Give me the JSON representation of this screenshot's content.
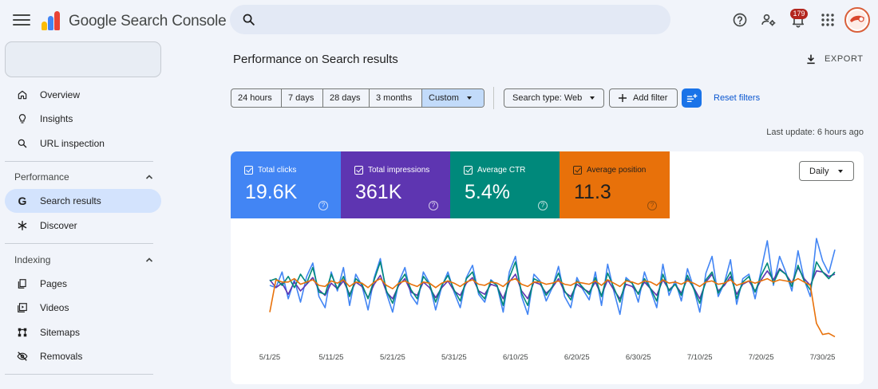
{
  "header": {
    "brand": "Google Search Console",
    "search_placeholder": "",
    "notification_count": "179",
    "icons": [
      "menu-icon",
      "search-icon",
      "help-icon",
      "manage-users-icon",
      "notifications-icon",
      "apps-grid-icon"
    ],
    "logo_colors": [
      "#fbbc04",
      "#4285f4",
      "#ea4335"
    ]
  },
  "sidebar": {
    "property_value": "",
    "items": [
      {
        "label": "Overview",
        "icon": "home-icon"
      },
      {
        "label": "Insights",
        "icon": "lightbulb-icon"
      },
      {
        "label": "URL inspection",
        "icon": "search-icon"
      }
    ],
    "performance": {
      "heading": "Performance",
      "items": [
        {
          "label": "Search results",
          "icon": "google-g-icon",
          "active": true
        },
        {
          "label": "Discover",
          "icon": "asterisk-icon"
        }
      ]
    },
    "indexing": {
      "heading": "Indexing",
      "items": [
        {
          "label": "Pages",
          "icon": "pages-icon"
        },
        {
          "label": "Videos",
          "icon": "video-icon"
        },
        {
          "label": "Sitemaps",
          "icon": "sitemap-icon"
        },
        {
          "label": "Removals",
          "icon": "eye-off-icon"
        }
      ]
    }
  },
  "main": {
    "title": "Performance on Search results",
    "export_label": "EXPORT",
    "date_ranges": [
      "24 hours",
      "7 days",
      "28 days",
      "3 months",
      "Custom"
    ],
    "selected_range": "Custom",
    "search_type_label": "Search type: Web",
    "add_filter_label": "Add filter",
    "reset_filters_label": "Reset filters",
    "last_update": "Last update: 6 hours ago",
    "interval_label": "Daily"
  },
  "metrics": [
    {
      "label": "Total clicks",
      "value": "19.6K",
      "color": "#4285f4"
    },
    {
      "label": "Total impressions",
      "value": "361K",
      "color": "#5e35b1"
    },
    {
      "label": "Average CTR",
      "value": "5.4%",
      "color": "#00897b"
    },
    {
      "label": "Average position",
      "value": "11.3",
      "color": "#e8710a"
    }
  ],
  "chart_data": {
    "type": "line",
    "x": [
      "5/1/25",
      "5/2/25",
      "5/3/25",
      "5/4/25",
      "5/5/25",
      "5/6/25",
      "5/7/25",
      "5/8/25",
      "5/9/25",
      "5/10/25",
      "5/11/25",
      "5/12/25",
      "5/13/25",
      "5/14/25",
      "5/15/25",
      "5/16/25",
      "5/17/25",
      "5/18/25",
      "5/19/25",
      "5/20/25",
      "5/21/25",
      "5/22/25",
      "5/23/25",
      "5/24/25",
      "5/25/25",
      "5/26/25",
      "5/27/25",
      "5/28/25",
      "5/29/25",
      "5/30/25",
      "5/31/25",
      "6/1/25",
      "6/2/25",
      "6/3/25",
      "6/4/25",
      "6/5/25",
      "6/6/25",
      "6/7/25",
      "6/8/25",
      "6/9/25",
      "6/10/25",
      "6/11/25",
      "6/12/25",
      "6/13/25",
      "6/14/25",
      "6/15/25",
      "6/16/25",
      "6/17/25",
      "6/18/25",
      "6/19/25",
      "6/20/25",
      "6/21/25",
      "6/22/25",
      "6/23/25",
      "6/24/25",
      "6/25/25",
      "6/26/25",
      "6/27/25",
      "6/28/25",
      "6/29/25",
      "6/30/25",
      "7/1/25",
      "7/2/25",
      "7/3/25",
      "7/4/25",
      "7/5/25",
      "7/6/25",
      "7/7/25",
      "7/8/25",
      "7/9/25",
      "7/10/25",
      "7/11/25",
      "7/12/25",
      "7/13/25",
      "7/14/25",
      "7/15/25",
      "7/16/25",
      "7/17/25",
      "7/18/25",
      "7/19/25",
      "7/20/25",
      "7/21/25",
      "7/22/25",
      "7/23/25",
      "7/24/25",
      "7/25/25",
      "7/26/25",
      "7/27/25",
      "7/28/25",
      "7/29/25",
      "7/30/25",
      "7/31/25",
      "8/1/25"
    ],
    "x_tick_labels": [
      "5/1/25",
      "5/11/25",
      "5/21/25",
      "5/31/25",
      "6/10/25",
      "6/20/25",
      "6/30/25",
      "7/10/25",
      "7/20/25",
      "7/30/25"
    ],
    "ylim": [
      0,
      1
    ],
    "grid": false,
    "legend": "none",
    "series": [
      {
        "color": "#4285f4",
        "values": [
          0.5,
          0.48,
          0.62,
          0.38,
          0.55,
          0.35,
          0.58,
          0.7,
          0.4,
          0.3,
          0.62,
          0.45,
          0.66,
          0.32,
          0.6,
          0.5,
          0.28,
          0.57,
          0.74,
          0.43,
          0.26,
          0.53,
          0.66,
          0.41,
          0.33,
          0.62,
          0.52,
          0.28,
          0.49,
          0.62,
          0.44,
          0.3,
          0.57,
          0.68,
          0.42,
          0.35,
          0.55,
          0.5,
          0.26,
          0.62,
          0.76,
          0.4,
          0.24,
          0.6,
          0.54,
          0.36,
          0.48,
          0.67,
          0.4,
          0.3,
          0.57,
          0.46,
          0.37,
          0.62,
          0.32,
          0.69,
          0.45,
          0.24,
          0.57,
          0.52,
          0.35,
          0.62,
          0.46,
          0.3,
          0.69,
          0.41,
          0.54,
          0.36,
          0.65,
          0.48,
          0.26,
          0.61,
          0.76,
          0.4,
          0.52,
          0.73,
          0.33,
          0.56,
          0.6,
          0.38,
          0.64,
          0.9,
          0.5,
          0.76,
          0.62,
          0.45,
          0.81,
          0.55,
          0.4,
          0.92,
          0.72,
          0.61,
          0.82
        ]
      },
      {
        "color": "#5e35b1",
        "values": [
          0.55,
          0.48,
          0.52,
          0.42,
          0.53,
          0.45,
          0.51,
          0.57,
          0.46,
          0.41,
          0.52,
          0.47,
          0.54,
          0.42,
          0.53,
          0.49,
          0.39,
          0.51,
          0.59,
          0.44,
          0.38,
          0.5,
          0.56,
          0.44,
          0.41,
          0.53,
          0.48,
          0.39,
          0.48,
          0.54,
          0.45,
          0.41,
          0.52,
          0.57,
          0.45,
          0.42,
          0.51,
          0.49,
          0.38,
          0.53,
          0.6,
          0.45,
          0.38,
          0.53,
          0.51,
          0.43,
          0.48,
          0.56,
          0.44,
          0.4,
          0.51,
          0.47,
          0.44,
          0.53,
          0.41,
          0.55,
          0.46,
          0.38,
          0.51,
          0.49,
          0.43,
          0.53,
          0.47,
          0.41,
          0.55,
          0.46,
          0.51,
          0.43,
          0.56,
          0.48,
          0.38,
          0.53,
          0.6,
          0.45,
          0.5,
          0.58,
          0.42,
          0.51,
          0.54,
          0.45,
          0.55,
          0.63,
          0.55,
          0.65,
          0.6,
          0.52,
          0.66,
          0.56,
          0.5,
          0.63,
          0.62,
          0.58,
          0.6
        ]
      },
      {
        "color": "#00897b",
        "values": [
          0.54,
          0.56,
          0.5,
          0.58,
          0.48,
          0.6,
          0.52,
          0.66,
          0.44,
          0.42,
          0.6,
          0.47,
          0.58,
          0.4,
          0.56,
          0.51,
          0.38,
          0.55,
          0.71,
          0.45,
          0.34,
          0.52,
          0.6,
          0.46,
          0.38,
          0.58,
          0.51,
          0.35,
          0.5,
          0.59,
          0.46,
          0.36,
          0.56,
          0.62,
          0.44,
          0.38,
          0.54,
          0.5,
          0.32,
          0.57,
          0.71,
          0.43,
          0.32,
          0.56,
          0.53,
          0.41,
          0.49,
          0.61,
          0.45,
          0.37,
          0.54,
          0.48,
          0.42,
          0.57,
          0.4,
          0.61,
          0.48,
          0.35,
          0.55,
          0.52,
          0.42,
          0.56,
          0.47,
          0.36,
          0.6,
          0.45,
          0.51,
          0.41,
          0.59,
          0.47,
          0.34,
          0.55,
          0.62,
          0.43,
          0.52,
          0.62,
          0.38,
          0.53,
          0.58,
          0.44,
          0.59,
          0.7,
          0.52,
          0.64,
          0.6,
          0.49,
          0.68,
          0.54,
          0.46,
          0.71,
          0.62,
          0.56,
          0.62
        ]
      },
      {
        "color": "#e8710a",
        "values": [
          0.26,
          0.55,
          0.53,
          0.53,
          0.56,
          0.51,
          0.53,
          0.55,
          0.5,
          0.49,
          0.54,
          0.52,
          0.55,
          0.49,
          0.53,
          0.52,
          0.48,
          0.53,
          0.56,
          0.5,
          0.47,
          0.52,
          0.54,
          0.51,
          0.49,
          0.53,
          0.52,
          0.48,
          0.52,
          0.54,
          0.52,
          0.49,
          0.53,
          0.55,
          0.51,
          0.5,
          0.53,
          0.52,
          0.49,
          0.54,
          0.56,
          0.51,
          0.49,
          0.53,
          0.53,
          0.51,
          0.52,
          0.54,
          0.51,
          0.5,
          0.53,
          0.52,
          0.51,
          0.54,
          0.5,
          0.55,
          0.52,
          0.49,
          0.54,
          0.53,
          0.51,
          0.54,
          0.53,
          0.5,
          0.55,
          0.52,
          0.53,
          0.51,
          0.54,
          0.52,
          0.49,
          0.53,
          0.54,
          0.51,
          0.52,
          0.55,
          0.5,
          0.52,
          0.54,
          0.52,
          0.54,
          0.56,
          0.53,
          0.55,
          0.54,
          0.53,
          0.56,
          0.53,
          0.5,
          0.16,
          0.06,
          0.07,
          0.04
        ]
      }
    ]
  }
}
